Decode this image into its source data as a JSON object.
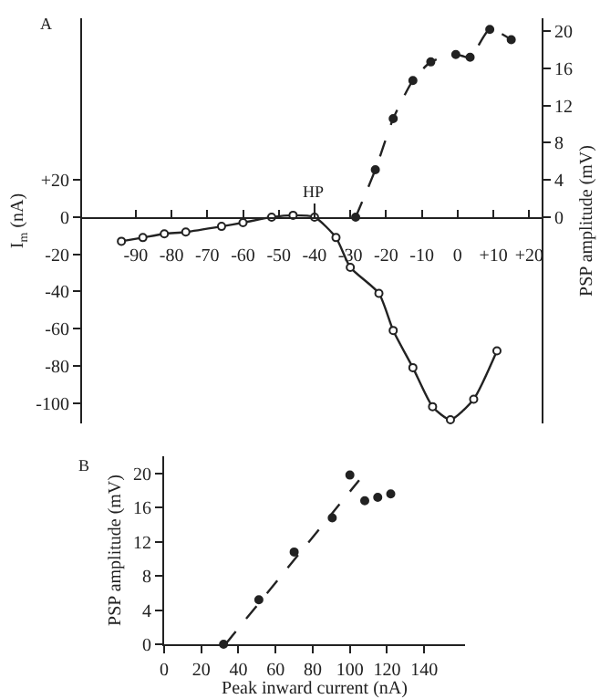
{
  "chart_data": [
    {
      "type": "line",
      "annotations": [
        "A",
        {
          "text": "HP",
          "x": -40,
          "y": 0
        }
      ],
      "ylabel": "I$_{m}$ (nA)",
      "y2label": "PSP amplitude (mV)",
      "xlim": [
        -105,
        23.5
      ],
      "xticks": [
        -90,
        -80,
        -70,
        -60,
        -50,
        -40,
        -30,
        -20,
        -10,
        0,
        {
          "value": 10,
          "label": "+10"
        },
        {
          "value": 20,
          "label": "+20"
        }
      ],
      "ylim": [
        -111,
        107
      ],
      "yticks": [
        {
          "value": 20,
          "label": "+20"
        },
        0,
        -20,
        -40,
        -60,
        -80,
        -100
      ],
      "y2lim": [
        -22.2,
        21.4
      ],
      "y2ticks": [
        0,
        4,
        8,
        12,
        16,
        20
      ],
      "series": [
        {
          "color": "#222222",
          "marker": "circle",
          "line_style": "solid",
          "x": [
            -94,
            -88,
            -82,
            -76,
            -66,
            -60,
            -52,
            -46,
            -40,
            -34,
            -30,
            -22,
            -18,
            -12.5,
            -7,
            -2,
            4.5,
            11
          ],
          "values": [
            -13,
            -11,
            -9,
            -8,
            -5,
            -3,
            0,
            1,
            0,
            -11,
            -27,
            -41,
            -61,
            -81,
            -102,
            -109,
            -98,
            -72
          ]
        },
        {
          "axis": "y2",
          "color": "#222222",
          "marker": "circle",
          "line_style": "dashed",
          "x": [
            -28.5,
            -23,
            -18,
            -12.5,
            -7.5,
            -0.5,
            3.5,
            9,
            15
          ],
          "values": [
            0,
            5.1,
            10.6,
            14.7,
            16.7,
            17.5,
            17.2,
            20.2,
            19.1
          ]
        }
      ]
    },
    {
      "type": "scatter",
      "annotations": [
        "B"
      ],
      "xlabel": "Peak inward current (nA)",
      "ylabel": "PSP amplitude (mV)",
      "xlim": [
        0,
        162
      ],
      "xticks": [
        0,
        20,
        40,
        60,
        80,
        100,
        120,
        140
      ],
      "ylim": [
        0,
        22
      ],
      "yticks": [
        0,
        4,
        8,
        12,
        16,
        20
      ],
      "series": [
        {
          "color": "#222222",
          "marker": "circle",
          "x": [
            32,
            51,
            70,
            90.5,
            100,
            108,
            115,
            122
          ],
          "values": [
            0,
            5.2,
            10.8,
            14.8,
            19.8,
            16.8,
            17.2,
            17.6
          ]
        },
        {
          "type": "line",
          "color": "#222222",
          "marker": "none",
          "line_style": "dashed",
          "x": [
            33,
            105
          ],
          "values": [
            0,
            19.2
          ]
        }
      ]
    }
  ]
}
